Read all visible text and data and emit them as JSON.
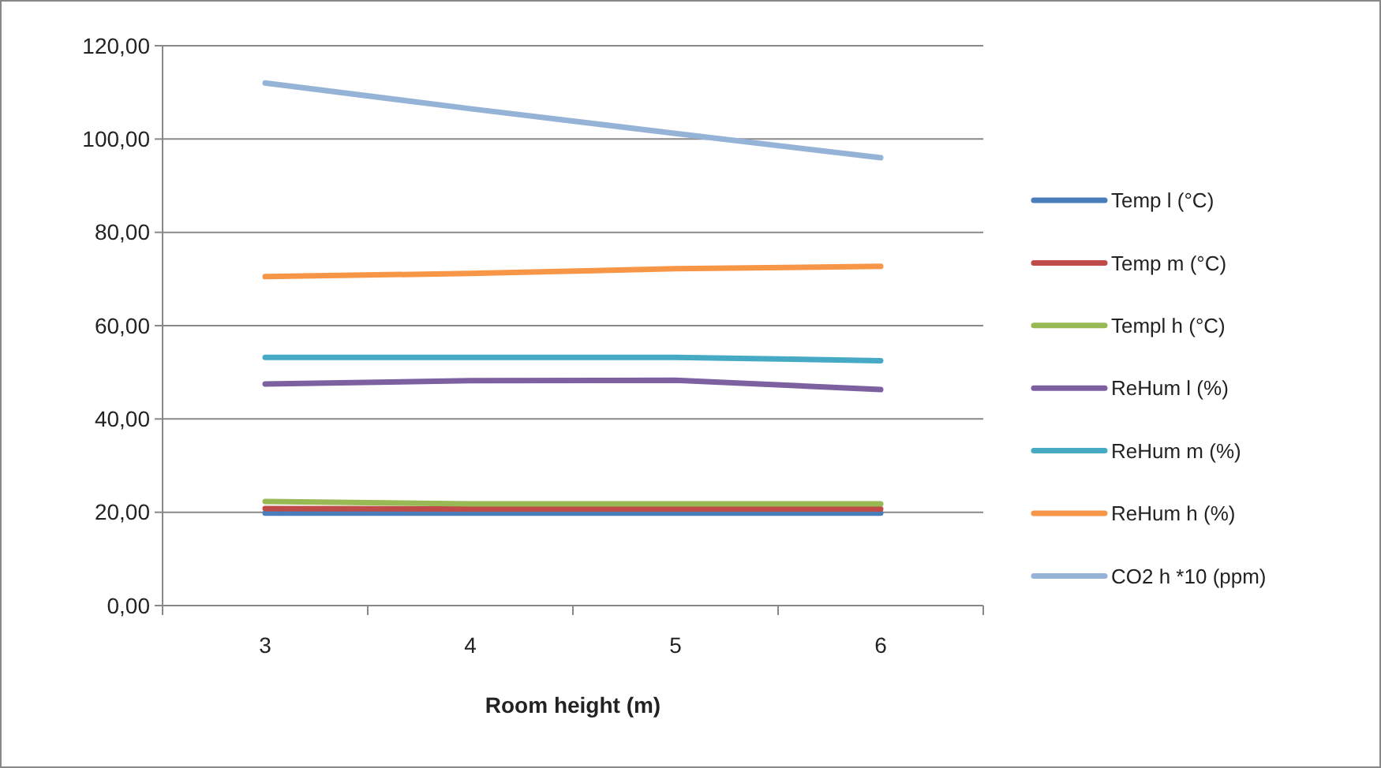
{
  "chart_data": {
    "type": "line",
    "xlabel": "Room height (m)",
    "categories": [
      "3",
      "4",
      "5",
      "6"
    ],
    "ylim": [
      0,
      120
    ],
    "yticks": [
      {
        "value": 0,
        "label": "0,00"
      },
      {
        "value": 20,
        "label": "20,00"
      },
      {
        "value": 40,
        "label": "40,00"
      },
      {
        "value": 60,
        "label": "60,00"
      },
      {
        "value": 80,
        "label": "80,00"
      },
      {
        "value": 100,
        "label": "100,00"
      },
      {
        "value": 120,
        "label": "120,00"
      }
    ],
    "grid": "y",
    "legend": "right",
    "marker": "none",
    "line_style": "solid",
    "series": [
      {
        "name": "Temp l (°C)",
        "color": "#4a7ebb",
        "values": [
          19.8,
          19.8,
          19.8,
          19.8
        ]
      },
      {
        "name": "Temp m (°C)",
        "color": "#be4b48",
        "values": [
          20.8,
          20.7,
          20.7,
          20.7
        ]
      },
      {
        "name": "Templ h (°C)",
        "color": "#98b954",
        "values": [
          22.3,
          21.8,
          21.8,
          21.8
        ]
      },
      {
        "name": "ReHum l (%)",
        "color": "#7d60a0",
        "values": [
          47.5,
          48.2,
          48.3,
          46.3
        ]
      },
      {
        "name": "ReHum m (%)",
        "color": "#46aac5",
        "values": [
          53.2,
          53.2,
          53.2,
          52.5
        ]
      },
      {
        "name": "ReHum h (%)",
        "color": "#f79646",
        "values": [
          70.5,
          71.2,
          72.2,
          72.7
        ]
      },
      {
        "name": "CO2 h *10 (ppm)",
        "color": "#95b3d7",
        "values": [
          112,
          106.5,
          101.2,
          96
        ]
      }
    ]
  }
}
